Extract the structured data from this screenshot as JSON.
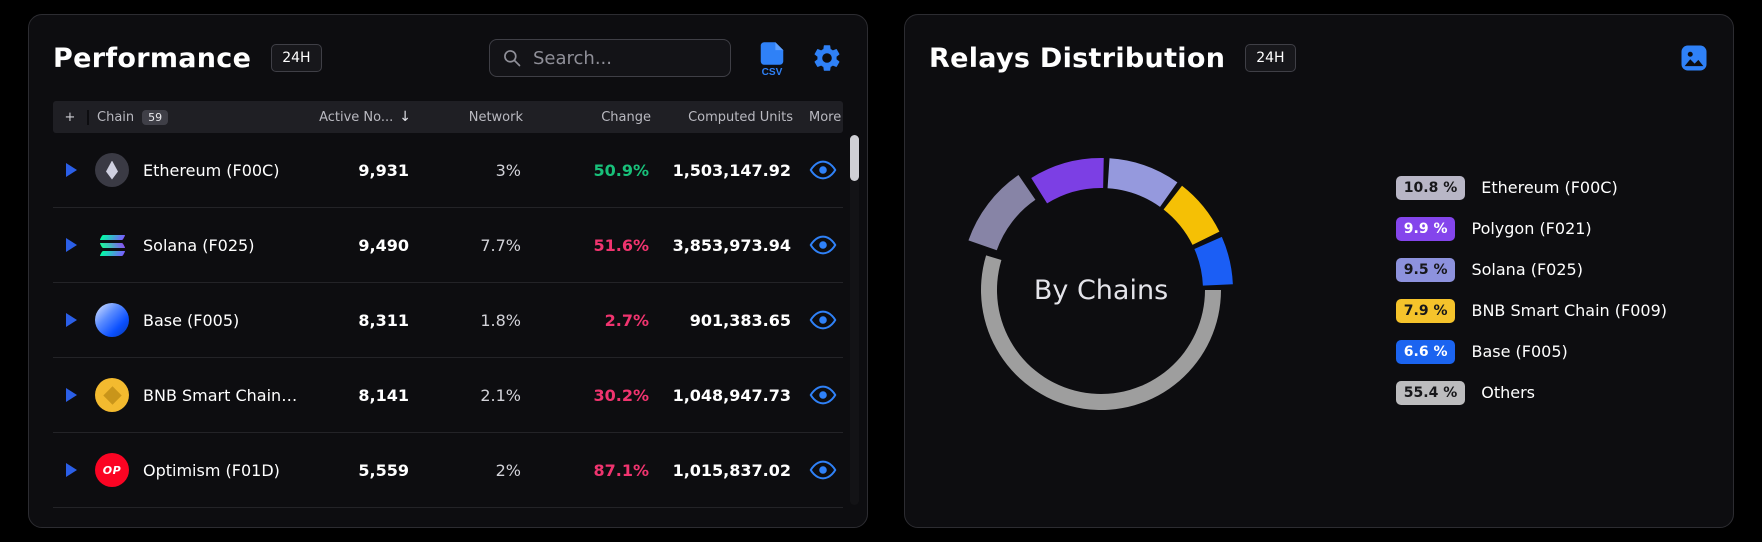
{
  "theme": {
    "background": "#000000",
    "panel_bg": "#0d0d10",
    "panel_border": "#2c2c31",
    "accent_blue": "#2f81f7",
    "green": "#18c07a",
    "pink": "#f0346f"
  },
  "performance": {
    "title": "Performance",
    "timeframe": "24H",
    "search_placeholder": "Search...",
    "csv_label": "CSV",
    "chain_count": "59",
    "columns": {
      "plus": "+",
      "chain": "Chain",
      "active": "Active No...",
      "network": "Network",
      "change": "Change",
      "computed": "Computed Units",
      "more": "More"
    },
    "rows": [
      {
        "chain": "Ethereum (F00C)",
        "active": "9,931",
        "network": "3%",
        "change": "50.9%",
        "change_color": "green",
        "computed": "1,503,147.92"
      },
      {
        "chain": "Solana (F025)",
        "active": "9,490",
        "network": "7.7%",
        "change": "51.6%",
        "change_color": "pink",
        "computed": "3,853,973.94"
      },
      {
        "chain": "Base (F005)",
        "active": "8,311",
        "network": "1.8%",
        "change": "2.7%",
        "change_color": "pink",
        "computed": "901,383.65"
      },
      {
        "chain": "BNB Smart Chain ...",
        "active": "8,141",
        "network": "2.1%",
        "change": "30.2%",
        "change_color": "pink",
        "computed": "1,048,947.73"
      },
      {
        "chain": "Optimism (F01D)",
        "active": "5,559",
        "network": "2%",
        "change": "87.1%",
        "change_color": "pink",
        "computed": "1,015,837.02",
        "logo_text": "OP"
      }
    ]
  },
  "relays": {
    "title": "Relays Distribution",
    "timeframe": "24H",
    "center_label": "By Chains"
  },
  "chart_data": {
    "type": "pie",
    "title": "Relays Distribution - By Chains (24H)",
    "legend_position": "right",
    "start_angle": -72,
    "series": [
      {
        "label": "Ethereum (F00C)",
        "value": 10.8,
        "pct": "10.8 %",
        "color": "#8784a6",
        "badge_bg": "#b8b6c6",
        "badge_text": "#17171a",
        "exploded": true
      },
      {
        "label": "Polygon (F021)",
        "value": 9.9,
        "pct": "9.9 %",
        "color": "#7c3fe4",
        "badge_bg": "#8445ec",
        "badge_text": "#ffffff"
      },
      {
        "label": "Solana (F025)",
        "value": 9.5,
        "pct": "9.5 %",
        "color": "#9599dd",
        "badge_bg": "#8d92dd",
        "badge_text": "#17171a"
      },
      {
        "label": "BNB Smart Chain (F009)",
        "value": 7.9,
        "pct": "7.9 %",
        "color": "#f5c005",
        "badge_bg": "#f5c32b",
        "badge_text": "#17171a"
      },
      {
        "label": "Base (F005)",
        "value": 6.6,
        "pct": "6.6 %",
        "color": "#1b5ef5",
        "badge_bg": "#1b64f0",
        "badge_text": "#ffffff"
      },
      {
        "label": "Others",
        "value": 55.4,
        "pct": "55.4 %",
        "color": "#9e9e9e",
        "badge_bg": "#bcbcbe",
        "badge_text": "#17171a",
        "ring": "thin"
      }
    ]
  }
}
